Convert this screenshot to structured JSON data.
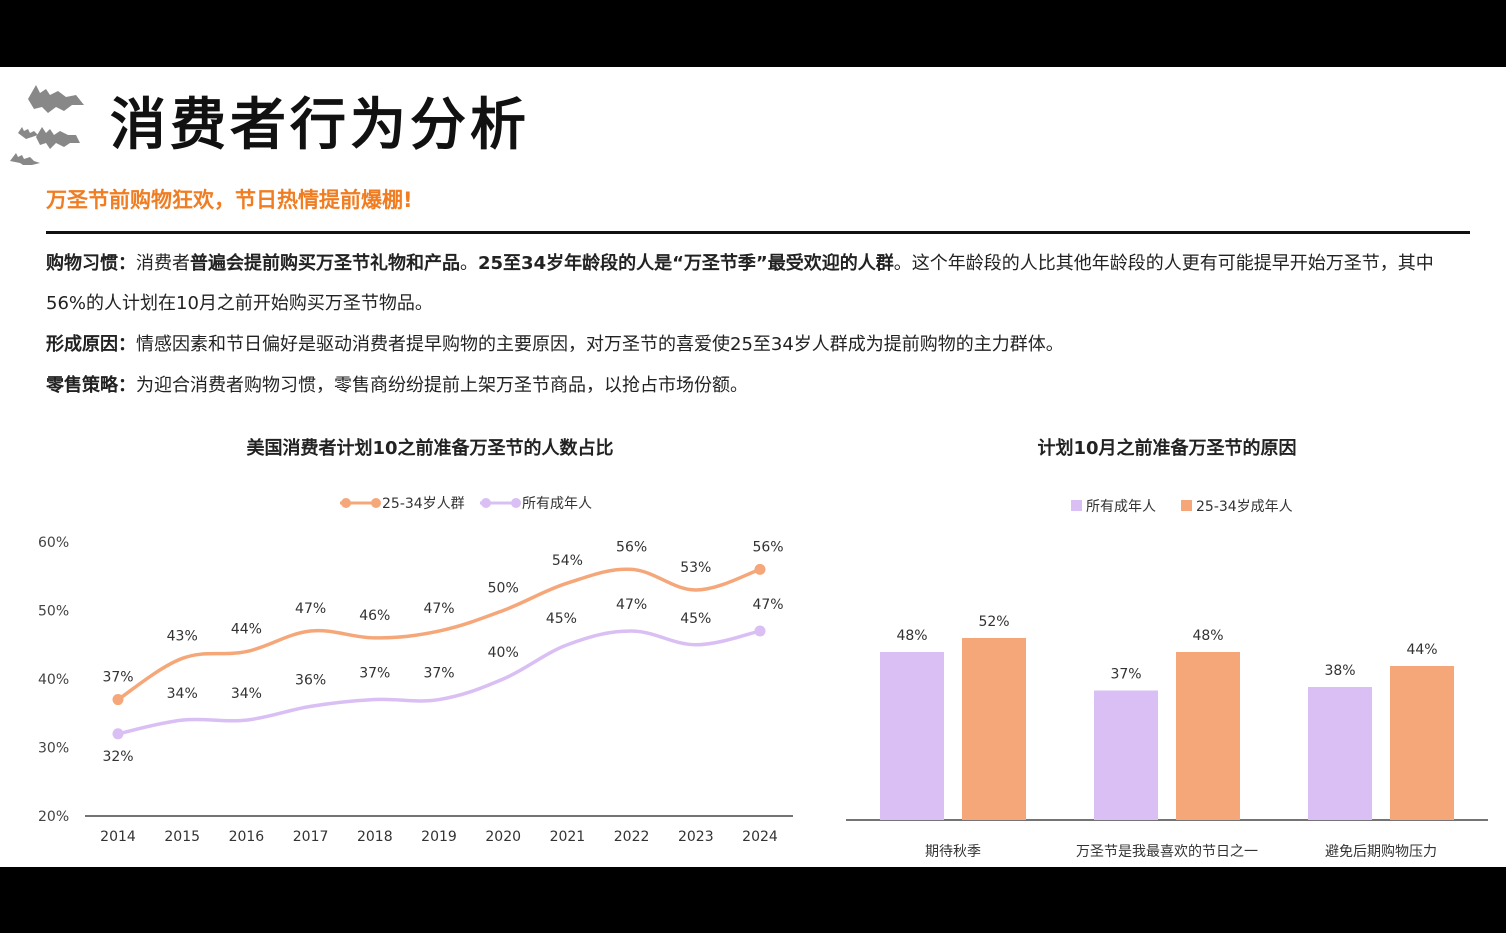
{
  "header": {
    "title": "消费者行为分析",
    "subtitle": "万圣节前购物狂欢，节日热情提前爆棚!"
  },
  "paragraphs": {
    "p1": {
      "label": "购物习惯：",
      "t1": "消费者",
      "b1": "普遍会提前购买万圣节礼物和产品",
      "t2": "。",
      "b2": "25至34岁年龄段的人是“万圣节季”最受欢迎的人群",
      "t3": "。这个年龄段的人比其他年龄段的人更有可能提早开始万圣节，其中56%的人计划在10月之前开始购买万圣节物品。"
    },
    "p2": {
      "label": "形成原因：",
      "text": "情感因素和节日偏好是驱动消费者提早购物的主要原因，对万圣节的喜爱使25至34岁人群成为提前购物的主力群体。"
    },
    "p3": {
      "label": "零售策略：",
      "text": "为迎合消费者购物习惯，零售商纷纷提前上架万圣节商品，以抢占市场份额。"
    }
  },
  "colors": {
    "orange": "#f5a779",
    "purple": "#d9bff4",
    "subtitle": "#f07d22"
  },
  "chart_data": [
    {
      "type": "line",
      "title": "美国消费者计划10之前准备万圣节的人数占比",
      "x": [
        "2014",
        "2015",
        "2016",
        "2017",
        "2018",
        "2019",
        "2020",
        "2021",
        "2022",
        "2023",
        "2024"
      ],
      "series": [
        {
          "name": "25-34岁人群",
          "values": [
            37,
            43,
            44,
            47,
            46,
            47,
            50,
            54,
            56,
            53,
            56
          ]
        },
        {
          "name": "所有成年人",
          "values": [
            32,
            34,
            34,
            36,
            37,
            37,
            40,
            45,
            47,
            45,
            47
          ]
        }
      ],
      "value_labels": {
        "25-34岁人群": [
          "37%",
          "43%",
          "44%",
          "47%",
          "46%",
          "47%",
          "50%",
          "54%",
          "56%",
          "53%",
          "56%"
        ],
        "所有成年人": [
          "32%",
          "34%",
          "34%",
          "36%",
          "37%",
          "37%",
          "40%",
          "45%",
          "47%",
          "45%",
          "47%"
        ]
      },
      "yticks": [
        "20%",
        "30%",
        "40%",
        "50%",
        "60%"
      ],
      "ylim": [
        20,
        60
      ],
      "legend": "top-center",
      "grid": false
    },
    {
      "type": "bar",
      "title": "计划10月之前准备万圣节的原因",
      "categories": [
        "期待秋季",
        "万圣节是我最喜欢的节日之一",
        "避免后期购物压力"
      ],
      "series": [
        {
          "name": "所有成年人",
          "values": [
            48,
            37,
            38
          ]
        },
        {
          "name": "25-34岁成年人",
          "values": [
            52,
            48,
            44
          ]
        }
      ],
      "value_labels": {
        "所有成年人": [
          "48%",
          "37%",
          "38%"
        ],
        "25-34岁成年人": [
          "52%",
          "48%",
          "44%"
        ]
      },
      "legend": "top-center",
      "grid": false
    }
  ]
}
